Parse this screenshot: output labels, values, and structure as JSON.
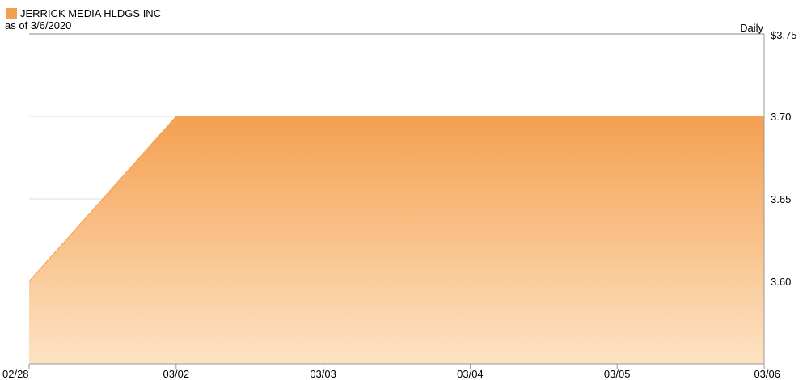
{
  "header": {
    "series_name": "JERRICK MEDIA HLDGS INC",
    "as_of": "as of 3/6/2020",
    "frequency": "Daily"
  },
  "colors": {
    "series": "#f4a050",
    "fill_top": "#f4a050",
    "fill_bottom": "#fde3c4",
    "grid": "#dddddd",
    "axis": "#999999",
    "top_line": "#888888"
  },
  "chart_data": {
    "type": "area",
    "x": [
      "02/28",
      "03/02",
      "03/03",
      "03/04",
      "03/05",
      "03/06"
    ],
    "series": [
      {
        "name": "JERRICK MEDIA HLDGS INC",
        "values": [
          3.6,
          3.7,
          3.7,
          3.7,
          3.7,
          3.7
        ]
      }
    ],
    "ylim": [
      3.55,
      3.75
    ],
    "y_ticks": [
      {
        "value": 3.75,
        "label": "$3.75"
      },
      {
        "value": 3.7,
        "label": "3.70"
      },
      {
        "value": 3.65,
        "label": "3.65"
      },
      {
        "value": 3.6,
        "label": "3.60"
      }
    ],
    "grid": true,
    "y_axis_position": "right"
  }
}
